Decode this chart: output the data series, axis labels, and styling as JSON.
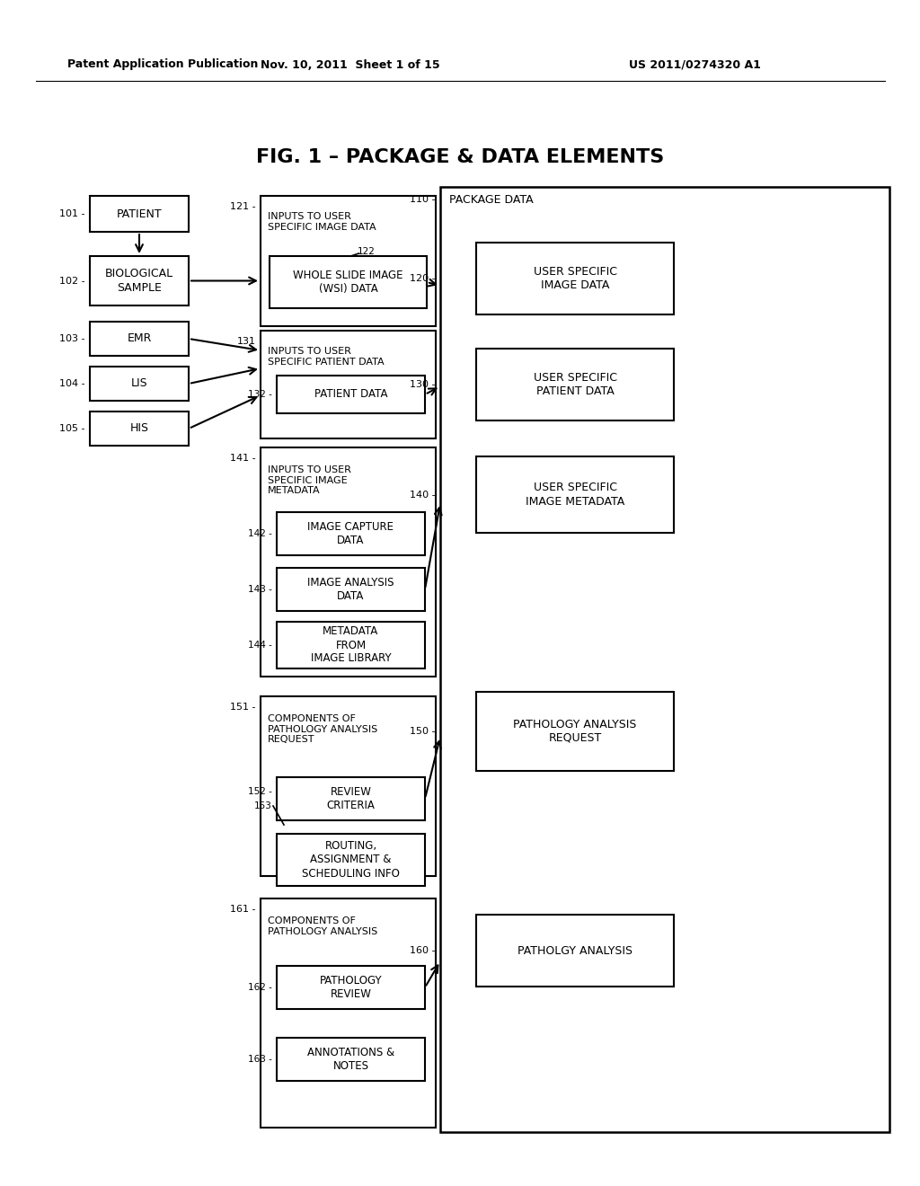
{
  "header_left": "Patent Application Publication",
  "header_center": "Nov. 10, 2011  Sheet 1 of 15",
  "header_right": "US 2011/0274320 A1",
  "title": "FIG. 1 – PACKAGE & DATA ELEMENTS",
  "bg_color": "#ffffff"
}
